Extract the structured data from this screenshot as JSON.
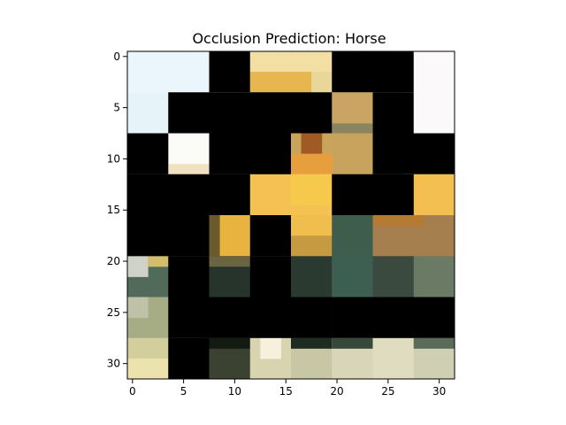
{
  "chart_data": {
    "type": "heatmap",
    "title": "Occlusion Prediction: Horse",
    "xlabel": "",
    "ylabel": "",
    "grid_size": [
      32,
      32
    ],
    "xlim": [
      -0.5,
      31.5
    ],
    "ylim": [
      31.5,
      -0.5
    ],
    "x_ticks": [
      0,
      5,
      10,
      15,
      20,
      25,
      30
    ],
    "y_ticks": [
      0,
      5,
      10,
      15,
      20,
      25,
      30
    ],
    "grid": false,
    "occluded_patches": [
      {
        "x": [
          8,
          11
        ],
        "y": [
          0,
          3
        ]
      },
      {
        "x": [
          20,
          27
        ],
        "y": [
          0,
          3
        ]
      },
      {
        "x": [
          4,
          19
        ],
        "y": [
          4,
          7
        ]
      },
      {
        "x": [
          24,
          27
        ],
        "y": [
          4,
          7
        ]
      },
      {
        "x": [
          0,
          3
        ],
        "y": [
          8,
          11
        ]
      },
      {
        "x": [
          8,
          15
        ],
        "y": [
          8,
          11
        ]
      },
      {
        "x": [
          24,
          31
        ],
        "y": [
          8,
          11
        ]
      },
      {
        "x": [
          0,
          11
        ],
        "y": [
          12,
          15
        ]
      },
      {
        "x": [
          20,
          27
        ],
        "y": [
          12,
          15
        ]
      },
      {
        "x": [
          0,
          7
        ],
        "y": [
          16,
          19
        ]
      },
      {
        "x": [
          12,
          15
        ],
        "y": [
          16,
          19
        ]
      },
      {
        "x": [
          4,
          7
        ],
        "y": [
          20,
          23
        ]
      },
      {
        "x": [
          12,
          15
        ],
        "y": [
          20,
          23
        ]
      },
      {
        "x": [
          4,
          19
        ],
        "y": [
          24,
          27
        ]
      },
      {
        "x": [
          20,
          31
        ],
        "y": [
          24,
          27
        ]
      },
      {
        "x": [
          4,
          7
        ],
        "y": [
          28,
          31
        ]
      }
    ]
  }
}
